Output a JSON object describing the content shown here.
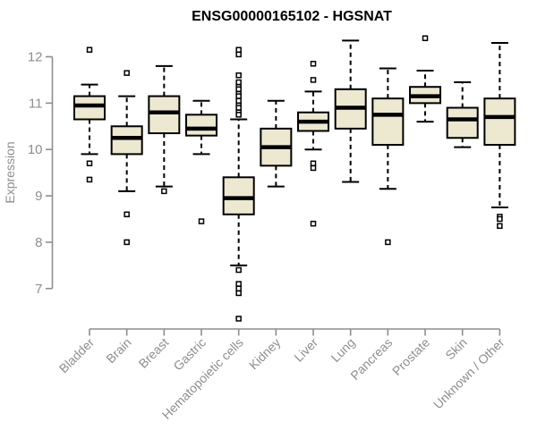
{
  "page": {
    "background": "#ffffff"
  },
  "chart_data": {
    "type": "boxplot",
    "title": "ENSG00000165102 - HGSNAT",
    "ylabel": "Expression",
    "xlabel": "",
    "yticks": [
      7,
      8,
      9,
      10,
      11,
      12
    ],
    "y_axis_range": [
      7,
      12
    ],
    "legend": false,
    "grid": false,
    "x_label_rotation": -45,
    "categories": [
      "Bladder",
      "Brain",
      "Breast",
      "Gastric",
      "Hematopoietic cells",
      "Kidney",
      "Liver",
      "Lung",
      "Pancreas",
      "Prostate",
      "Skin",
      "Unknown / Other"
    ],
    "series": [
      {
        "category": "Bladder",
        "whisker_low": 9.9,
        "q1": 10.65,
        "median": 10.95,
        "q3": 11.15,
        "whisker_high": 11.4,
        "outliers": [
          12.15,
          9.7,
          9.35
        ]
      },
      {
        "category": "Brain",
        "whisker_low": 9.1,
        "q1": 9.9,
        "median": 10.25,
        "q3": 10.5,
        "whisker_high": 11.15,
        "outliers": [
          11.65,
          8.6,
          8.0
        ]
      },
      {
        "category": "Breast",
        "whisker_low": 9.2,
        "q1": 10.35,
        "median": 10.8,
        "q3": 11.15,
        "whisker_high": 11.8,
        "outliers": [
          9.1
        ]
      },
      {
        "category": "Gastric",
        "whisker_low": 9.9,
        "q1": 10.3,
        "median": 10.45,
        "q3": 10.75,
        "whisker_high": 11.05,
        "outliers": [
          8.45
        ]
      },
      {
        "category": "Hematopoietic cells",
        "whisker_low": 7.5,
        "q1": 8.6,
        "median": 8.95,
        "q3": 9.4,
        "whisker_high": 10.65,
        "outliers": [
          12.15,
          12.05,
          11.6,
          11.45,
          11.35,
          11.3,
          11.2,
          11.15,
          11.05,
          10.95,
          10.9,
          10.8,
          10.75,
          7.4,
          7.1,
          7.0,
          6.9,
          6.35
        ]
      },
      {
        "category": "Kidney",
        "whisker_low": 9.2,
        "q1": 9.65,
        "median": 10.05,
        "q3": 10.45,
        "whisker_high": 11.05,
        "outliers": []
      },
      {
        "category": "Liver",
        "whisker_low": 10.0,
        "q1": 10.4,
        "median": 10.6,
        "q3": 10.8,
        "whisker_high": 11.25,
        "outliers": [
          11.85,
          11.5,
          9.7,
          9.6,
          8.4
        ]
      },
      {
        "category": "Lung",
        "whisker_low": 9.3,
        "q1": 10.45,
        "median": 10.9,
        "q3": 11.3,
        "whisker_high": 12.35,
        "outliers": []
      },
      {
        "category": "Pancreas",
        "whisker_low": 9.15,
        "q1": 10.1,
        "median": 10.75,
        "q3": 11.1,
        "whisker_high": 11.75,
        "outliers": [
          8.0
        ]
      },
      {
        "category": "Prostate",
        "whisker_low": 10.6,
        "q1": 11.0,
        "median": 11.15,
        "q3": 11.35,
        "whisker_high": 11.7,
        "outliers": [
          12.4
        ]
      },
      {
        "category": "Skin",
        "whisker_low": 10.05,
        "q1": 10.25,
        "median": 10.65,
        "q3": 10.9,
        "whisker_high": 11.45,
        "outliers": []
      },
      {
        "category": "Unknown / Other",
        "whisker_low": 8.75,
        "q1": 10.1,
        "median": 10.7,
        "q3": 11.1,
        "whisker_high": 12.3,
        "outliers": [
          8.55,
          8.5,
          8.35
        ]
      }
    ],
    "colors": {
      "background": "#ffffff",
      "box_fill": "#EDE8D0",
      "box_border": "#000000",
      "median": "#000000",
      "whisker": "#000000",
      "outlier_fill": "#ffffff",
      "outlier_border": "#000000",
      "axis": "#8e8e8e",
      "tick_label": "#8e8e8e",
      "title": "#000000"
    }
  }
}
